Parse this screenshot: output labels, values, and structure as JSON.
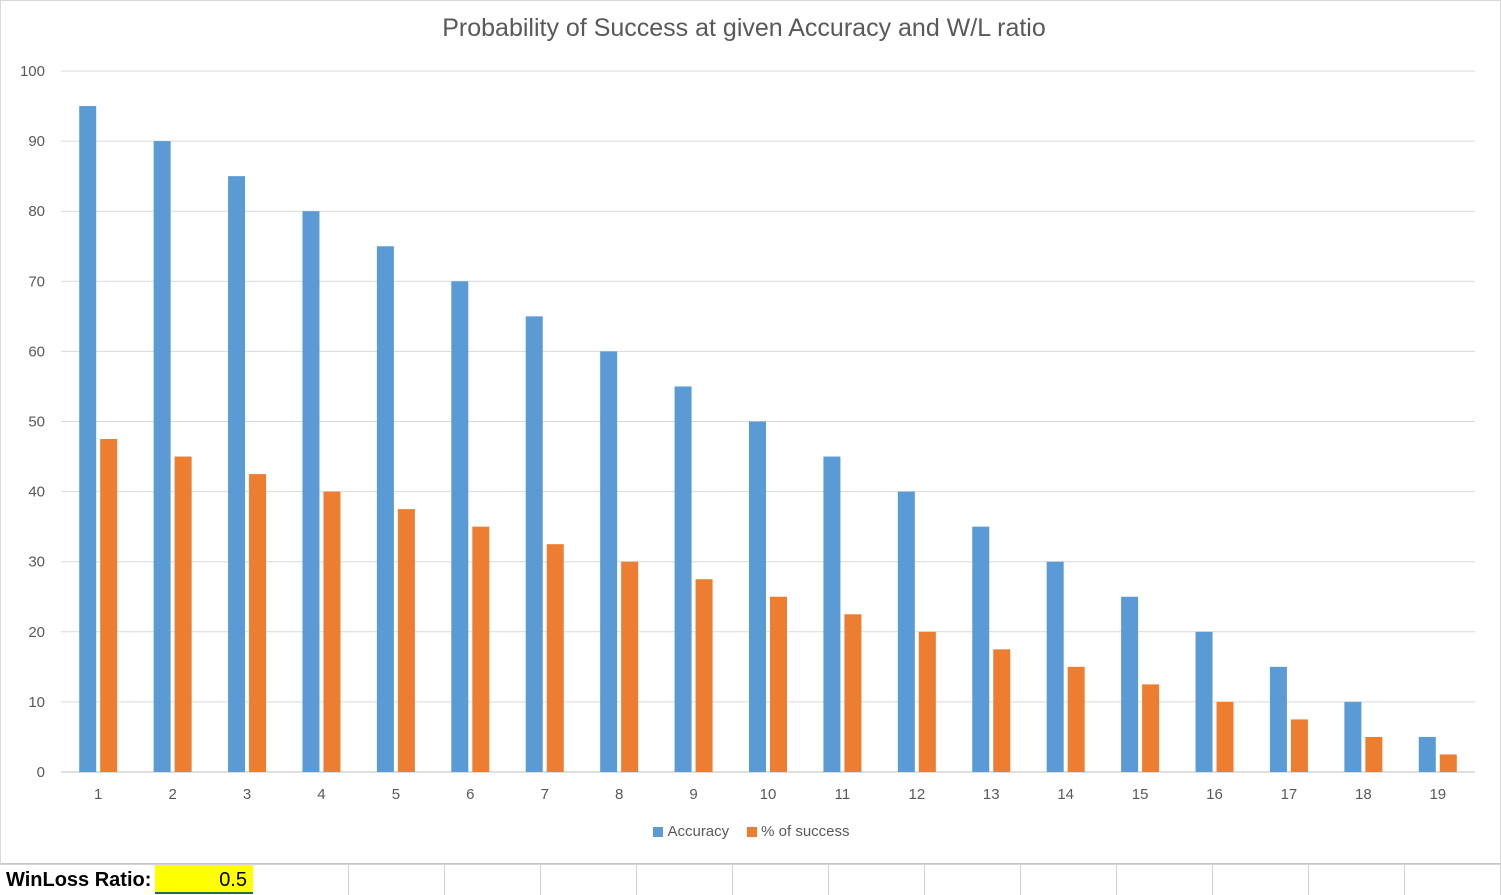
{
  "chart_data": {
    "type": "bar",
    "title": "Probability of Success at given Accuracy and W/L ratio",
    "xlabel": "",
    "ylabel": "",
    "ylim": [
      0,
      100
    ],
    "yticks": [
      0,
      10,
      20,
      30,
      40,
      50,
      60,
      70,
      80,
      90,
      100
    ],
    "categories": [
      "1",
      "2",
      "3",
      "4",
      "5",
      "6",
      "7",
      "8",
      "9",
      "10",
      "11",
      "12",
      "13",
      "14",
      "15",
      "16",
      "17",
      "18",
      "19"
    ],
    "series": [
      {
        "name": "Accuracy",
        "color": "#5b9bd5",
        "values": [
          95,
          90,
          85,
          80,
          75,
          70,
          65,
          60,
          55,
          50,
          45,
          40,
          35,
          30,
          25,
          20,
          15,
          10,
          5
        ]
      },
      {
        "name": "% of success",
        "color": "#ed7d31",
        "values": [
          47.5,
          45,
          42.5,
          40,
          37.5,
          35,
          32.5,
          30,
          27.5,
          25,
          22.5,
          20,
          17.5,
          15,
          12.5,
          10,
          7.5,
          5,
          2.5
        ]
      }
    ],
    "grid": true,
    "legend": "bottom"
  },
  "sheet": {
    "label": "WinLoss Ratio:",
    "value": "0.5",
    "value_bg": "#ffff00"
  }
}
